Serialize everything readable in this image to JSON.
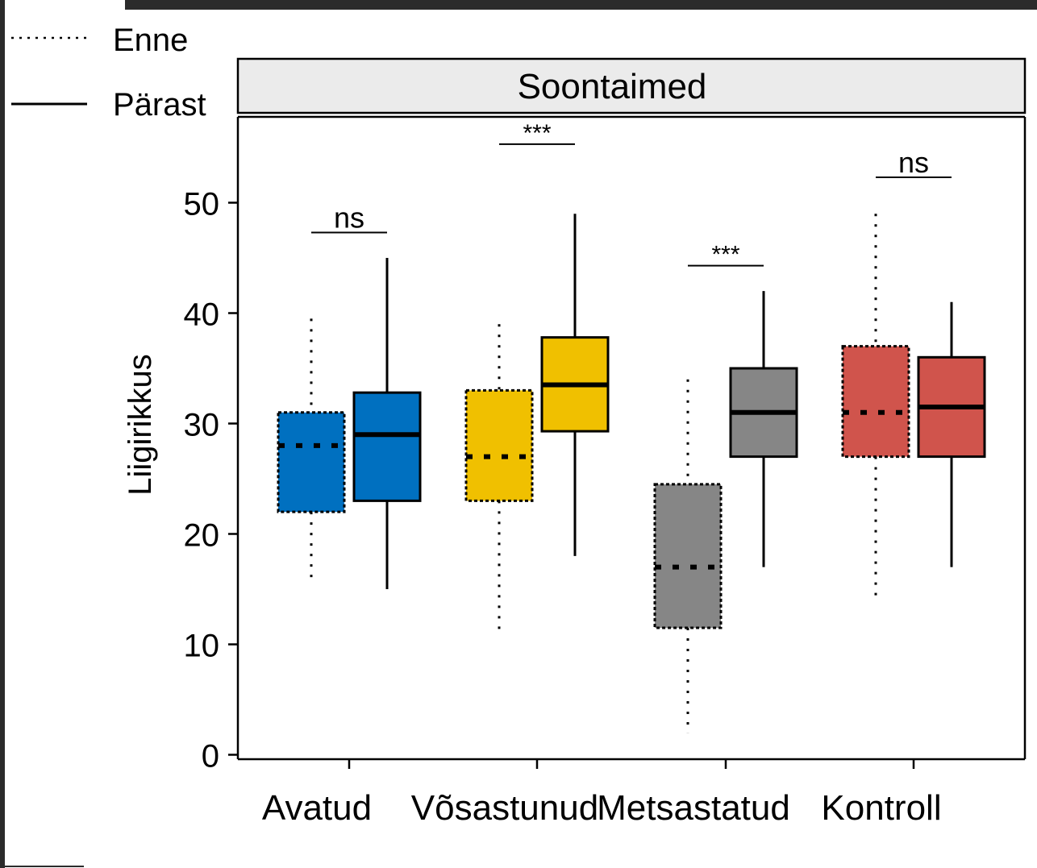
{
  "chart_data": {
    "type": "box",
    "facet_title": "Soontaimed",
    "ylabel": "Liigirikkus",
    "xlabel": "",
    "ylim": [
      0,
      58
    ],
    "yticks": [
      0,
      10,
      20,
      30,
      40,
      50
    ],
    "categories": [
      "Avatud",
      "Võsastunud",
      "Metsastatud",
      "Kontroll"
    ],
    "category_colors": [
      "#0070C0",
      "#F0C000",
      "#868686",
      "#D0544C"
    ],
    "legend": {
      "placement": "top-left",
      "items": [
        {
          "label": "Enne",
          "linetype": "dotted"
        },
        {
          "label": "Pärast",
          "linetype": "solid"
        }
      ]
    },
    "series": [
      {
        "name": "Enne",
        "linetype": "dotted",
        "boxes": [
          {
            "min": 16,
            "q1": 22,
            "median": 28,
            "q3": 31,
            "max": 39.5
          },
          {
            "min": 11,
            "q1": 23,
            "median": 27,
            "q3": 33,
            "max": 39
          },
          {
            "min": 2,
            "q1": 11.5,
            "median": 17,
            "q3": 24.5,
            "max": 34
          },
          {
            "min": 14,
            "q1": 27,
            "median": 31,
            "q3": 37,
            "max": 49
          }
        ]
      },
      {
        "name": "Pärast",
        "linetype": "solid",
        "boxes": [
          {
            "min": 15,
            "q1": 23,
            "median": 29,
            "q3": 32.8,
            "max": 45
          },
          {
            "min": 18,
            "q1": 29.3,
            "median": 33.5,
            "q3": 37.8,
            "max": 49
          },
          {
            "min": 17,
            "q1": 27,
            "median": 31,
            "q3": 35,
            "max": 42
          },
          {
            "min": 17,
            "q1": 27,
            "median": 31.5,
            "q3": 36,
            "max": 41
          }
        ]
      }
    ],
    "annotations": [
      {
        "category": "Avatud",
        "label": "ns",
        "y": 47.3
      },
      {
        "category": "Võsastunud",
        "label": "***",
        "y": 55.3
      },
      {
        "category": "Metsastatud",
        "label": "***",
        "y": 44.3
      },
      {
        "category": "Kontroll",
        "label": "ns",
        "y": 52.3
      }
    ]
  }
}
